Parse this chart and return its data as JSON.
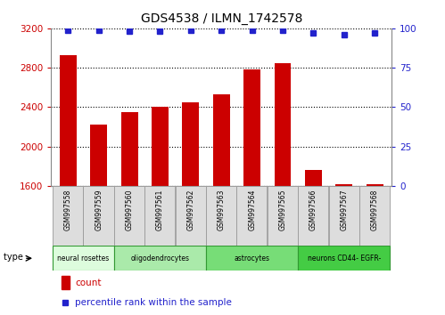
{
  "title": "GDS4538 / ILMN_1742578",
  "samples": [
    "GSM997558",
    "GSM997559",
    "GSM997560",
    "GSM997561",
    "GSM997562",
    "GSM997563",
    "GSM997564",
    "GSM997565",
    "GSM997566",
    "GSM997567",
    "GSM997568"
  ],
  "counts": [
    2930,
    2220,
    2350,
    2400,
    2450,
    2530,
    2780,
    2850,
    1760,
    1620,
    1615
  ],
  "percentiles": [
    99,
    99,
    98,
    98,
    99,
    99,
    99,
    99,
    97,
    96,
    97
  ],
  "ylim_left": [
    1600,
    3200
  ],
  "ylim_right": [
    0,
    100
  ],
  "yticks_left": [
    1600,
    2000,
    2400,
    2800,
    3200
  ],
  "yticks_right": [
    0,
    25,
    50,
    75,
    100
  ],
  "bar_color": "#cc0000",
  "dot_color": "#2222cc",
  "cell_type_groups": [
    {
      "label": "neural rosettes",
      "start": 0,
      "end": 2,
      "color": "#ddfcdd"
    },
    {
      "label": "oligodendrocytes",
      "start": 2,
      "end": 5,
      "color": "#aaeaaa"
    },
    {
      "label": "astrocytes",
      "start": 5,
      "end": 8,
      "color": "#77dd77"
    },
    {
      "label": "neurons CD44- EGFR-",
      "start": 8,
      "end": 11,
      "color": "#44cc44"
    }
  ],
  "legend_count_label": "count",
  "legend_pct_label": "percentile rank within the sample",
  "cell_type_label": "cell type",
  "sample_box_color": "#dddddd",
  "grid_color": "#000000"
}
